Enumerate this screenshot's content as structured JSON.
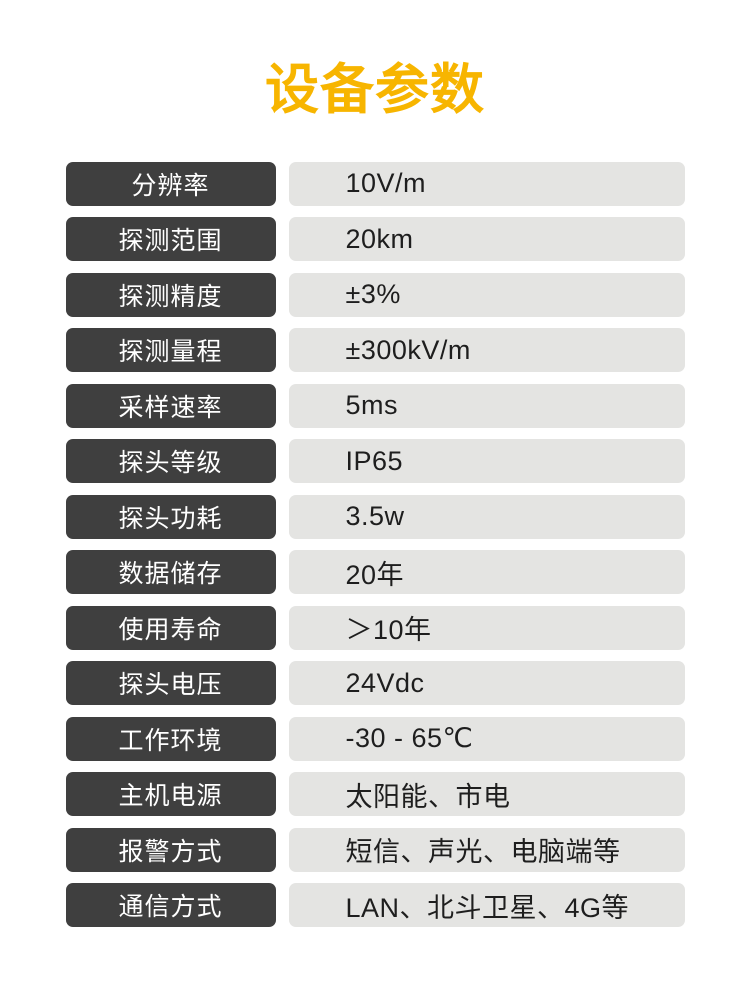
{
  "title": "设备参数",
  "colors": {
    "accent": "#F7B500",
    "label_bg": "#3F3F3F",
    "value_bg": "#E4E4E2",
    "label_text": "#FFFFFF",
    "value_text": "#1E1E1E",
    "background": "#FFFFFF"
  },
  "spec_table": {
    "rows": [
      {
        "label": "分辨率",
        "value": "10V/m"
      },
      {
        "label": "探测范围",
        "value": "20km"
      },
      {
        "label": "探测精度",
        "value": "±3%"
      },
      {
        "label": "探测量程",
        "value": "±300kV/m"
      },
      {
        "label": "采样速率",
        "value": "5ms"
      },
      {
        "label": "探头等级",
        "value": "IP65"
      },
      {
        "label": "探头功耗",
        "value": "3.5w"
      },
      {
        "label": "数据储存",
        "value": "20年"
      },
      {
        "label": "使用寿命",
        "value": "＞10年"
      },
      {
        "label": "探头电压",
        "value": "24Vdc"
      },
      {
        "label": "工作环境",
        "value": "-30 - 65℃"
      },
      {
        "label": "主机电源",
        "value": "太阳能、市电"
      },
      {
        "label": "报警方式",
        "value": "短信、声光、电脑端等"
      },
      {
        "label": "通信方式",
        "value": "LAN、北斗卫星、4G等"
      }
    ]
  }
}
